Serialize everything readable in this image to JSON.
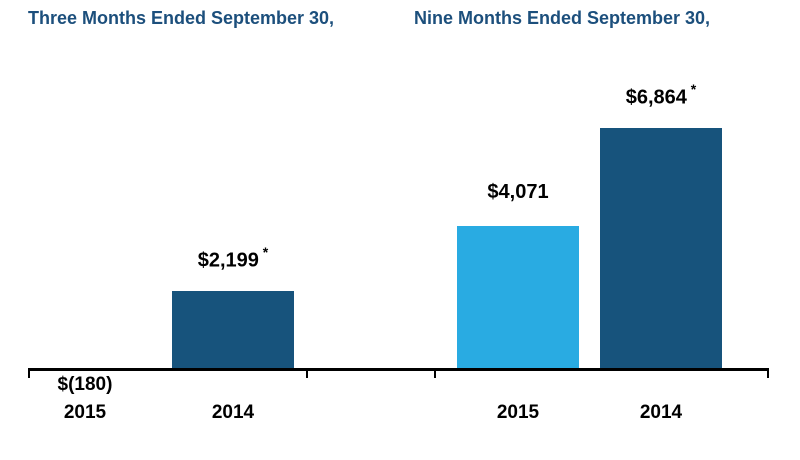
{
  "page": {
    "background": "#ffffff"
  },
  "chart_data": {
    "type": "bar",
    "title": "",
    "group_headers": [
      "Three Months Ended September 30,",
      "Nine Months Ended September 30,"
    ],
    "header_color": "#1c4f7c",
    "axis_color": "#000000",
    "footnote_marker": "*",
    "grid": false,
    "legend": false,
    "ylim": [
      -500,
      7000
    ],
    "bars": [
      {
        "group": "Three Months Ended September 30,",
        "category": "2015",
        "value": -180,
        "label": "$(180)",
        "asterisk": false,
        "color": "#29abe2"
      },
      {
        "group": "Three Months Ended September 30,",
        "category": "2014",
        "value": 2199,
        "label": "$2,199",
        "asterisk": true,
        "color": "#17537c"
      },
      {
        "group": "Nine Months Ended September 30,",
        "category": "2015",
        "value": 4071,
        "label": "$4,071",
        "asterisk": false,
        "color": "#29abe2"
      },
      {
        "group": "Nine Months Ended September 30,",
        "category": "2014",
        "value": 6864,
        "label": "$6,864",
        "asterisk": true,
        "color": "#17537c"
      }
    ]
  }
}
